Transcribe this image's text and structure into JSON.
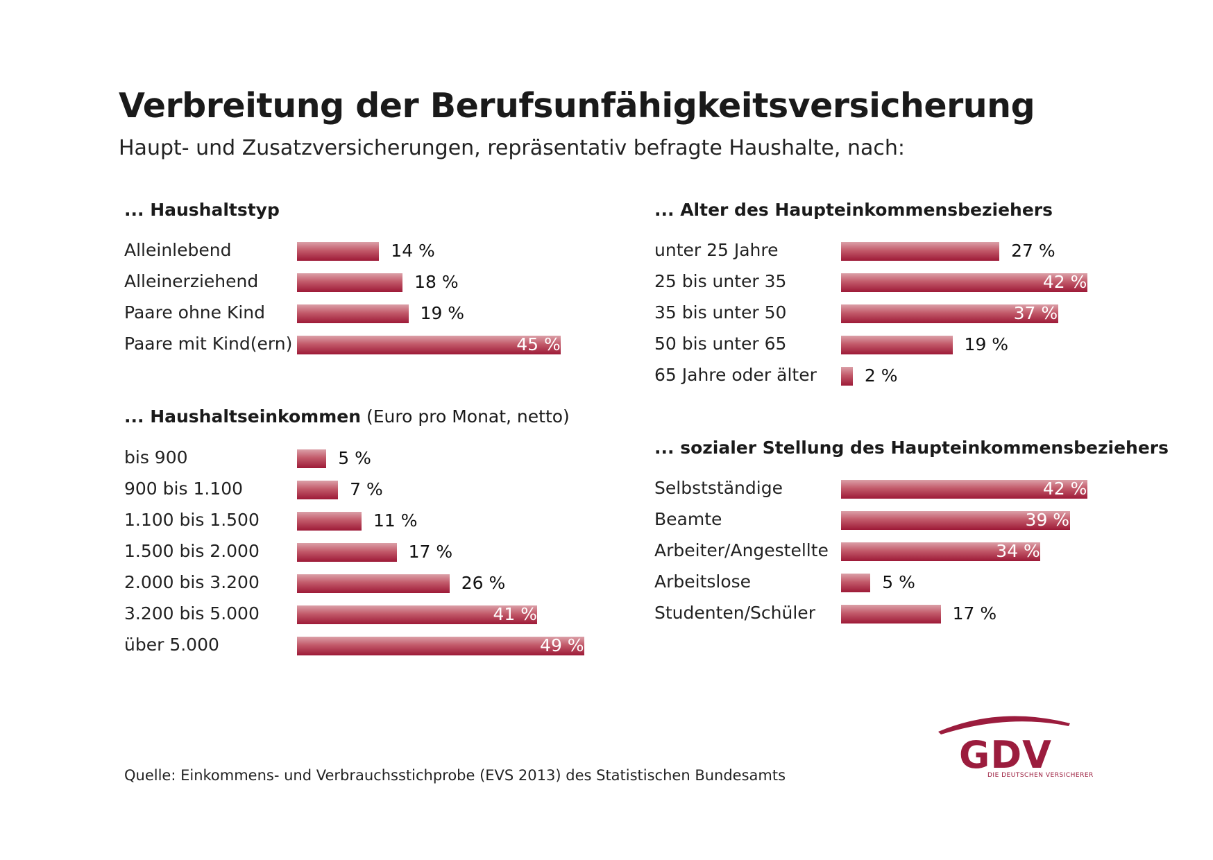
{
  "title": "Verbreitung der Berufsunfähigkeitsversicherung",
  "subtitle": "Haupt- und Zusatzversicherungen, repräsentativ befragte Haushalte, nach:",
  "source": "Quelle: Einkommens- und Verbrauchsstichprobe (EVS 2013) des Statistischen Bundesamts",
  "logo": {
    "text": "GDV",
    "tagline": "DIE DEUTSCHEN VERSICHERER"
  },
  "colors": {
    "bar_dark": "#9d1a37",
    "bar_light": "#dba0a8",
    "brand": "#9b1c3d"
  },
  "chart_data": [
    {
      "type": "bar",
      "orientation": "horizontal",
      "title": "... Haushaltstyp",
      "title_suffix": "",
      "categories": [
        "Alleinlebend",
        "Alleinerziehend",
        "Paare ohne Kind",
        "Paare mit Kind(ern)"
      ],
      "values": [
        14,
        18,
        19,
        45
      ],
      "value_labels": [
        "14 %",
        "18 %",
        "19 %",
        "45 %"
      ],
      "unit": "%"
    },
    {
      "type": "bar",
      "orientation": "horizontal",
      "title": "... Haushaltseinkommen",
      "title_suffix": "(Euro pro Monat, netto)",
      "categories": [
        "bis 900",
        "900 bis 1.100",
        "1.100 bis 1.500",
        "1.500 bis 2.000",
        "2.000 bis 3.200",
        "3.200 bis 5.000",
        "über 5.000"
      ],
      "values": [
        5,
        7,
        11,
        17,
        26,
        41,
        49
      ],
      "value_labels": [
        "5 %",
        "7 %",
        "11 %",
        "17 %",
        "26 %",
        "41 %",
        "49 %"
      ],
      "unit": "%"
    },
    {
      "type": "bar",
      "orientation": "horizontal",
      "title": "... Alter des Haupteinkommensbeziehers",
      "title_suffix": "",
      "categories": [
        "unter 25 Jahre",
        "25 bis unter 35",
        "35 bis unter 50",
        "50 bis unter 65",
        "65 Jahre oder älter"
      ],
      "values": [
        27,
        42,
        37,
        19,
        2
      ],
      "value_labels": [
        "27 %",
        "42 %",
        "37 %",
        "19 %",
        "2 %"
      ],
      "unit": "%"
    },
    {
      "type": "bar",
      "orientation": "horizontal",
      "title": "... sozialer Stellung des Haupteinkommensbeziehers",
      "title_suffix": "",
      "categories": [
        "Selbstständige",
        "Beamte",
        "Arbeiter/Angestellte",
        "Arbeitslose",
        "Studenten/Schüler"
      ],
      "values": [
        42,
        39,
        34,
        5,
        17
      ],
      "value_labels": [
        "42 %",
        "39 %",
        "34 %",
        "5 %",
        "17 %"
      ],
      "unit": "%"
    }
  ]
}
